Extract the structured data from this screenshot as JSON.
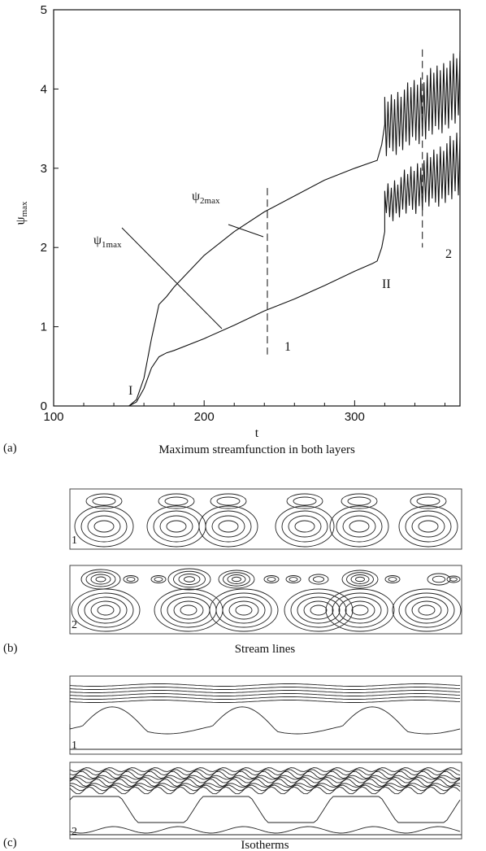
{
  "panel_a": {
    "label": "(a)",
    "caption": "Maximum streamfunction in both layers",
    "x_label": "t",
    "y_label": "ψ",
    "y_label_sub": "max",
    "annotations": {
      "psi2": "ψ",
      "psi2_sub": "2max",
      "psi1": "ψ",
      "psi1_sub": "1max",
      "point_I": "I",
      "point_II": "II",
      "marker_1": "1",
      "marker_2": "2"
    }
  },
  "panel_b": {
    "label": "(b)",
    "caption": "Stream lines",
    "inset_1": "1",
    "inset_2": "2"
  },
  "panel_c": {
    "label": "(c)",
    "caption": "Isotherms",
    "inset_1": "1",
    "inset_2": "2"
  },
  "chart_data": {
    "type": "line",
    "xlabel": "t",
    "ylabel": "ψmax",
    "xlim": [
      100,
      370
    ],
    "ylim": [
      0,
      5
    ],
    "x_ticks": [
      100,
      200,
      300
    ],
    "y_ticks": [
      0,
      1,
      2,
      3,
      4,
      5
    ],
    "grid": false,
    "legend": "none",
    "series": [
      {
        "name": "ψ2max",
        "x": [
          150,
          155,
          160,
          165,
          170,
          175,
          180,
          200,
          220,
          240,
          260,
          280,
          300,
          312,
          315,
          318,
          320
        ],
        "y": [
          0,
          0.08,
          0.35,
          0.85,
          1.28,
          1.38,
          1.5,
          1.9,
          2.2,
          2.45,
          2.65,
          2.85,
          3.0,
          3.08,
          3.1,
          3.3,
          3.55
        ],
        "oscillation": {
          "x_start": 320,
          "x_end": 370,
          "low": [
            3.1,
            3.55
          ],
          "high": [
            3.9,
            4.5
          ]
        }
      },
      {
        "name": "ψ1max",
        "x": [
          150,
          155,
          160,
          165,
          170,
          175,
          180,
          200,
          220,
          240,
          260,
          280,
          300,
          312,
          315,
          318,
          320
        ],
        "y": [
          0,
          0.05,
          0.22,
          0.48,
          0.62,
          0.67,
          0.7,
          0.85,
          1.02,
          1.2,
          1.35,
          1.52,
          1.7,
          1.8,
          1.83,
          2.0,
          2.2
        ],
        "oscillation": {
          "x_start": 320,
          "x_end": 370,
          "low": [
            2.3,
            2.6
          ],
          "high": [
            2.8,
            3.5
          ]
        }
      }
    ],
    "annotations": [
      {
        "text": "I",
        "x": 150,
        "y": 0
      },
      {
        "text": "II",
        "x": 315,
        "y": 1.8
      },
      {
        "text": "1",
        "x": 242,
        "y": 0.7,
        "marker_line_x": 242,
        "marker_line_y": [
          0.65,
          2.75
        ]
      },
      {
        "text": "2",
        "x": 345,
        "y": 1.9,
        "marker_line_x": 345,
        "marker_line_y": [
          2.0,
          4.5
        ]
      }
    ]
  }
}
